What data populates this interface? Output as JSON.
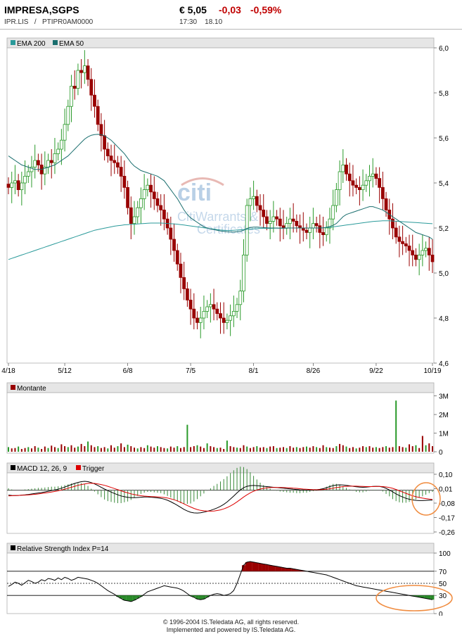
{
  "header": {
    "name": "IMPRESA,SGPS",
    "ticker": "IPR.LIS",
    "separator": "/",
    "isin": "PTIPR0AM0000",
    "price": "€ 5,05",
    "change": "-0,03",
    "change_pct": "-0,59%",
    "time": "17:30",
    "date": "18.10"
  },
  "watermark": {
    "logo": "citi",
    "line1": "CitiWarrants &",
    "line2": "Certificates"
  },
  "colors": {
    "up": "#2a9a2a",
    "down": "#990000",
    "ema200": "#2a9a9a",
    "ema50": "#1a6e6e",
    "volume": "#990000",
    "macd": "#000000",
    "trigger": "#dd0000",
    "highlight": "#f08c40"
  },
  "footer": {
    "line1": "© 1996-2004 IS.Teledata AG, all rights reserved.",
    "line2": "Implemented and powered by IS.Teledata AG."
  },
  "chart_data": [
    {
      "type": "candlestick",
      "legend": [
        "EMA 200",
        "EMA 50"
      ],
      "x_ticks": [
        "4/18",
        "5/12",
        "6/8",
        "7/5",
        "8/1",
        "8/26",
        "9/22",
        "10/19"
      ],
      "x_tick_index": [
        0,
        17,
        36,
        55,
        74,
        92,
        111,
        128
      ],
      "y_ticks": [
        "6,0",
        "5,8",
        "5,6",
        "5,4",
        "5,2",
        "5,0",
        "4,8",
        "4,6"
      ],
      "y_tick_values": [
        6.0,
        5.8,
        5.6,
        5.4,
        5.2,
        5.0,
        4.8,
        4.6
      ],
      "ylim": [
        4.6,
        6.0
      ],
      "close": [
        5.38,
        5.4,
        5.41,
        5.37,
        5.4,
        5.43,
        5.45,
        5.47,
        5.5,
        5.48,
        5.44,
        5.47,
        5.5,
        5.49,
        5.53,
        5.55,
        5.59,
        5.66,
        5.74,
        5.83,
        5.82,
        5.9,
        5.89,
        5.92,
        5.86,
        5.79,
        5.74,
        5.66,
        5.61,
        5.55,
        5.52,
        5.5,
        5.49,
        5.47,
        5.43,
        5.38,
        5.29,
        5.22,
        5.25,
        5.29,
        5.33,
        5.37,
        5.39,
        5.36,
        5.33,
        5.3,
        5.28,
        5.24,
        5.2,
        5.15,
        5.1,
        5.04,
        4.98,
        4.93,
        4.88,
        4.84,
        4.8,
        4.78,
        4.8,
        4.83,
        4.85,
        4.86,
        4.84,
        4.82,
        4.8,
        4.78,
        4.79,
        4.81,
        4.83,
        4.86,
        4.92,
        5.08,
        5.3,
        5.33,
        5.34,
        5.3,
        5.28,
        5.25,
        5.22,
        5.23,
        5.25,
        5.24,
        5.21,
        5.2,
        5.22,
        5.24,
        5.23,
        5.21,
        5.2,
        5.19,
        5.18,
        5.2,
        5.22,
        5.21,
        5.18,
        5.17,
        5.2,
        5.24,
        5.3,
        5.37,
        5.45,
        5.48,
        5.44,
        5.41,
        5.39,
        5.38,
        5.37,
        5.39,
        5.41,
        5.43,
        5.44,
        5.42,
        5.38,
        5.33,
        5.28,
        5.24,
        5.2,
        5.16,
        5.14,
        5.13,
        5.12,
        5.1,
        5.08,
        5.06,
        5.08,
        5.1,
        5.11,
        5.08,
        5.05
      ],
      "ema200": [
        5.06,
        5.065,
        5.07,
        5.075,
        5.08,
        5.085,
        5.09,
        5.095,
        5.1,
        5.105,
        5.11,
        5.115,
        5.12,
        5.125,
        5.13,
        5.135,
        5.14,
        5.145,
        5.15,
        5.155,
        5.16,
        5.165,
        5.17,
        5.175,
        5.18,
        5.185,
        5.19,
        5.193,
        5.196,
        5.199,
        5.202,
        5.205,
        5.208,
        5.21,
        5.212,
        5.214,
        5.215,
        5.216,
        5.217,
        5.218,
        5.219,
        5.22,
        5.221,
        5.222,
        5.222,
        5.222,
        5.222,
        5.221,
        5.22,
        5.219,
        5.218,
        5.217,
        5.215,
        5.213,
        5.211,
        5.209,
        5.207,
        5.205,
        5.203,
        5.201,
        5.199,
        5.197,
        5.195,
        5.193,
        5.191,
        5.19,
        5.189,
        5.189,
        5.19,
        5.191,
        5.192,
        5.193,
        5.194,
        5.195,
        5.196,
        5.197,
        5.198,
        5.198,
        5.198,
        5.198,
        5.199,
        5.199,
        5.199,
        5.199,
        5.2,
        5.2,
        5.2,
        5.2,
        5.2,
        5.2,
        5.2,
        5.2,
        5.2,
        5.2,
        5.2,
        5.201,
        5.202,
        5.203,
        5.205,
        5.207,
        5.209,
        5.211,
        5.213,
        5.215,
        5.217,
        5.219,
        5.221,
        5.223,
        5.225,
        5.227,
        5.229,
        5.23,
        5.231,
        5.232,
        5.232,
        5.232,
        5.231,
        5.23,
        5.229,
        5.228,
        5.227,
        5.226,
        5.225,
        5.224,
        5.223,
        5.222,
        5.221,
        5.22,
        5.219
      ],
      "ema50": [
        5.52,
        5.51,
        5.5,
        5.49,
        5.48,
        5.475,
        5.47,
        5.465,
        5.46,
        5.46,
        5.46,
        5.465,
        5.47,
        5.475,
        5.48,
        5.49,
        5.5,
        5.51,
        5.52,
        5.535,
        5.55,
        5.565,
        5.58,
        5.595,
        5.605,
        5.612,
        5.615,
        5.616,
        5.614,
        5.61,
        5.6,
        5.59,
        5.575,
        5.56,
        5.545,
        5.53,
        5.51,
        5.49,
        5.475,
        5.465,
        5.455,
        5.45,
        5.445,
        5.44,
        5.435,
        5.43,
        5.42,
        5.41,
        5.39,
        5.37,
        5.35,
        5.33,
        5.305,
        5.28,
        5.26,
        5.245,
        5.235,
        5.225,
        5.215,
        5.205,
        5.2,
        5.196,
        5.193,
        5.19,
        5.187,
        5.185,
        5.183,
        5.182,
        5.182,
        5.183,
        5.185,
        5.19,
        5.198,
        5.202,
        5.204,
        5.204,
        5.203,
        5.202,
        5.201,
        5.2,
        5.2,
        5.2,
        5.199,
        5.199,
        5.199,
        5.2,
        5.2,
        5.2,
        5.2,
        5.2,
        5.2,
        5.2,
        5.2,
        5.2,
        5.2,
        5.201,
        5.203,
        5.207,
        5.212,
        5.22,
        5.235,
        5.25,
        5.26,
        5.265,
        5.27,
        5.275,
        5.28,
        5.285,
        5.29,
        5.295,
        5.295,
        5.29,
        5.285,
        5.28,
        5.27,
        5.26,
        5.25,
        5.24,
        5.23,
        5.22,
        5.21,
        5.2,
        5.19,
        5.18,
        5.175,
        5.17,
        5.165,
        5.16,
        5.15
      ]
    },
    {
      "type": "bar",
      "legend": [
        "Montante"
      ],
      "y_ticks": [
        "3M",
        "2M",
        "1M",
        "0"
      ],
      "y_tick_values": [
        3,
        2,
        1,
        0
      ],
      "ylim": [
        0,
        3.1
      ],
      "values": [
        0.25,
        0.18,
        0.2,
        0.28,
        0.15,
        0.2,
        0.25,
        0.18,
        0.3,
        0.22,
        0.15,
        0.28,
        0.2,
        0.33,
        0.25,
        0.2,
        0.4,
        0.3,
        0.25,
        0.35,
        0.22,
        0.28,
        0.42,
        0.3,
        0.55,
        0.35,
        0.25,
        0.3,
        0.2,
        0.25,
        0.18,
        0.35,
        0.22,
        0.3,
        0.45,
        0.25,
        0.38,
        0.3,
        0.22,
        0.18,
        0.25,
        0.2,
        0.35,
        0.28,
        0.22,
        0.3,
        0.25,
        0.2,
        0.18,
        0.28,
        0.22,
        0.3,
        0.2,
        0.25,
        1.45,
        0.25,
        0.3,
        0.35,
        0.28,
        0.2,
        0.45,
        0.3,
        0.25,
        0.2,
        0.22,
        0.15,
        0.6,
        0.3,
        0.25,
        0.22,
        0.2,
        0.35,
        0.28,
        0.2,
        0.25,
        0.3,
        0.22,
        0.25,
        0.2,
        0.28,
        0.3,
        0.2,
        0.22,
        0.25,
        0.2,
        0.3,
        0.22,
        0.25,
        0.2,
        0.25,
        0.28,
        0.22,
        0.3,
        0.25,
        0.2,
        0.35,
        0.25,
        0.22,
        0.2,
        0.3,
        0.42,
        0.35,
        0.28,
        0.2,
        0.25,
        0.18,
        0.22,
        0.3,
        0.25,
        0.3,
        0.22,
        0.25,
        0.2,
        0.25,
        0.3,
        0.22,
        0.25,
        2.75,
        0.3,
        0.25,
        0.22,
        0.4,
        0.3,
        0.35,
        0.2,
        0.85,
        0.35,
        0.45,
        0.3
      ]
    },
    {
      "type": "line",
      "legend": [
        "MACD 12, 26, 9",
        "Trigger"
      ],
      "y_ticks": [
        "0,10",
        "0,01",
        "-0,08",
        "-0,17",
        "-0,26"
      ],
      "y_tick_values": [
        0.1,
        0.01,
        -0.08,
        -0.17,
        -0.26
      ],
      "ylim": [
        -0.26,
        0.1
      ],
      "macd": [
        -0.03,
        -0.032,
        -0.033,
        -0.032,
        -0.03,
        -0.028,
        -0.026,
        -0.023,
        -0.02,
        -0.017,
        -0.014,
        -0.01,
        -0.006,
        -0.002,
        0.002,
        0.007,
        0.013,
        0.02,
        0.028,
        0.036,
        0.043,
        0.049,
        0.054,
        0.056,
        0.054,
        0.048,
        0.04,
        0.03,
        0.019,
        0.008,
        -0.002,
        -0.011,
        -0.02,
        -0.028,
        -0.035,
        -0.04,
        -0.044,
        -0.046,
        -0.046,
        -0.045,
        -0.043,
        -0.042,
        -0.042,
        -0.043,
        -0.045,
        -0.047,
        -0.05,
        -0.055,
        -0.062,
        -0.071,
        -0.082,
        -0.094,
        -0.107,
        -0.119,
        -0.129,
        -0.137,
        -0.141,
        -0.142,
        -0.14,
        -0.136,
        -0.131,
        -0.125,
        -0.118,
        -0.11,
        -0.1,
        -0.088,
        -0.073,
        -0.055,
        -0.036,
        -0.016,
        0.002,
        0.016,
        0.025,
        0.029,
        0.03,
        0.029,
        0.027,
        0.025,
        0.023,
        0.021,
        0.019,
        0.017,
        0.015,
        0.013,
        0.011,
        0.009,
        0.007,
        0.005,
        0.003,
        0.002,
        0.001,
        0.001,
        0.002,
        0.003,
        0.006,
        0.01,
        0.016,
        0.023,
        0.029,
        0.033,
        0.034,
        0.033,
        0.031,
        0.028,
        0.025,
        0.022,
        0.02,
        0.019,
        0.02,
        0.022,
        0.024,
        0.025,
        0.024,
        0.02,
        0.012,
        0.002,
        -0.01,
        -0.022,
        -0.033,
        -0.042,
        -0.05,
        -0.056,
        -0.06,
        -0.063,
        -0.064,
        -0.064,
        -0.063,
        -0.062,
        -0.061
      ],
      "trigger": [
        -0.035,
        -0.034,
        -0.033,
        -0.032,
        -0.031,
        -0.03,
        -0.029,
        -0.027,
        -0.025,
        -0.023,
        -0.02,
        -0.017,
        -0.014,
        -0.011,
        -0.007,
        -0.003,
        0.002,
        0.007,
        0.013,
        0.019,
        0.025,
        0.031,
        0.036,
        0.04,
        0.043,
        0.044,
        0.043,
        0.04,
        0.036,
        0.031,
        0.025,
        0.018,
        0.011,
        0.004,
        -0.003,
        -0.01,
        -0.016,
        -0.022,
        -0.027,
        -0.031,
        -0.034,
        -0.036,
        -0.038,
        -0.039,
        -0.04,
        -0.041,
        -0.043,
        -0.045,
        -0.048,
        -0.053,
        -0.059,
        -0.066,
        -0.075,
        -0.085,
        -0.095,
        -0.104,
        -0.113,
        -0.12,
        -0.125,
        -0.128,
        -0.13,
        -0.13,
        -0.129,
        -0.126,
        -0.122,
        -0.116,
        -0.108,
        -0.098,
        -0.086,
        -0.072,
        -0.057,
        -0.042,
        -0.028,
        -0.016,
        -0.006,
        0.002,
        0.008,
        0.012,
        0.015,
        0.017,
        0.018,
        0.018,
        0.018,
        0.017,
        0.016,
        0.015,
        0.013,
        0.012,
        0.01,
        0.008,
        0.007,
        0.005,
        0.004,
        0.004,
        0.004,
        0.005,
        0.007,
        0.01,
        0.013,
        0.017,
        0.02,
        0.023,
        0.025,
        0.026,
        0.026,
        0.026,
        0.025,
        0.024,
        0.023,
        0.023,
        0.023,
        0.024,
        0.024,
        0.023,
        0.021,
        0.017,
        0.012,
        0.005,
        -0.003,
        -0.011,
        -0.019,
        -0.027,
        -0.034,
        -0.04,
        -0.045,
        -0.049,
        -0.052,
        -0.055,
        -0.057
      ]
    },
    {
      "type": "line",
      "legend": [
        "Relative Strength Index P=14"
      ],
      "y_ticks": [
        "100",
        "70",
        "50",
        "30",
        "0"
      ],
      "y_tick_values": [
        100,
        70,
        50,
        30,
        0
      ],
      "ylim": [
        0,
        100
      ],
      "levels": [
        70,
        50,
        30
      ],
      "rsi": [
        45,
        48,
        52,
        50,
        47,
        51,
        55,
        53,
        50,
        52,
        56,
        54,
        58,
        57,
        55,
        59,
        56,
        60,
        58,
        55,
        57,
        60,
        59,
        58,
        57,
        55,
        53,
        50,
        46,
        42,
        38,
        35,
        32,
        28,
        25,
        22,
        21,
        20,
        22,
        25,
        28,
        32,
        36,
        38,
        40,
        42,
        44,
        46,
        45,
        44,
        43,
        42,
        40,
        37,
        33,
        29,
        27,
        24,
        23,
        24,
        27,
        30,
        32,
        33,
        32,
        30,
        31,
        33,
        38,
        50,
        65,
        80,
        85,
        86,
        85,
        84,
        83,
        82,
        81,
        80,
        79,
        78,
        77,
        76,
        75,
        75,
        74,
        73,
        72,
        71,
        70,
        69,
        68,
        67,
        66,
        65,
        64,
        62,
        60,
        58,
        56,
        54,
        52,
        50,
        48,
        46,
        45,
        44,
        43,
        42,
        41,
        40,
        39,
        38,
        37,
        36,
        35,
        34,
        33,
        32,
        31,
        30,
        29,
        28,
        27,
        26,
        25,
        24,
        23
      ]
    }
  ]
}
